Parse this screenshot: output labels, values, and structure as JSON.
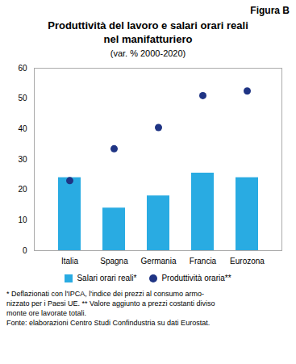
{
  "chart_data": {
    "type": "bar",
    "figure_label": "Figura B",
    "title": "Produttività del lavoro e salari orari reali\nnel manifatturiero",
    "subtitle": "(var. % 2000-2020)",
    "categories": [
      "Italia",
      "Spagna",
      "Germania",
      "Francia",
      "Eurozona"
    ],
    "series": [
      {
        "name": "Salari orari reali*",
        "type": "bar",
        "color": "#29ABE2",
        "values": [
          24.0,
          14.0,
          18.0,
          25.5,
          24.0
        ]
      },
      {
        "name": "Produttività oraria**",
        "type": "scatter",
        "marker": "circle",
        "color": "#1F3484",
        "values": [
          23.0,
          33.5,
          40.5,
          51.0,
          52.5
        ]
      }
    ],
    "ylim": [
      0,
      60
    ],
    "yticks": [
      0,
      10,
      20,
      30,
      40,
      50,
      60
    ],
    "grid": false,
    "legend": "bottom",
    "footnote": "* Deflazionati con l'IPCA, l'indice dei prezzi al consumo armo-\nnizzato per i Paesi UE. ** Valore aggiunto a prezzi costanti diviso\nmonte ore lavorate totali.\nFonte: elaborazioni Centro Studi Confindustria su dati Eurostat."
  }
}
